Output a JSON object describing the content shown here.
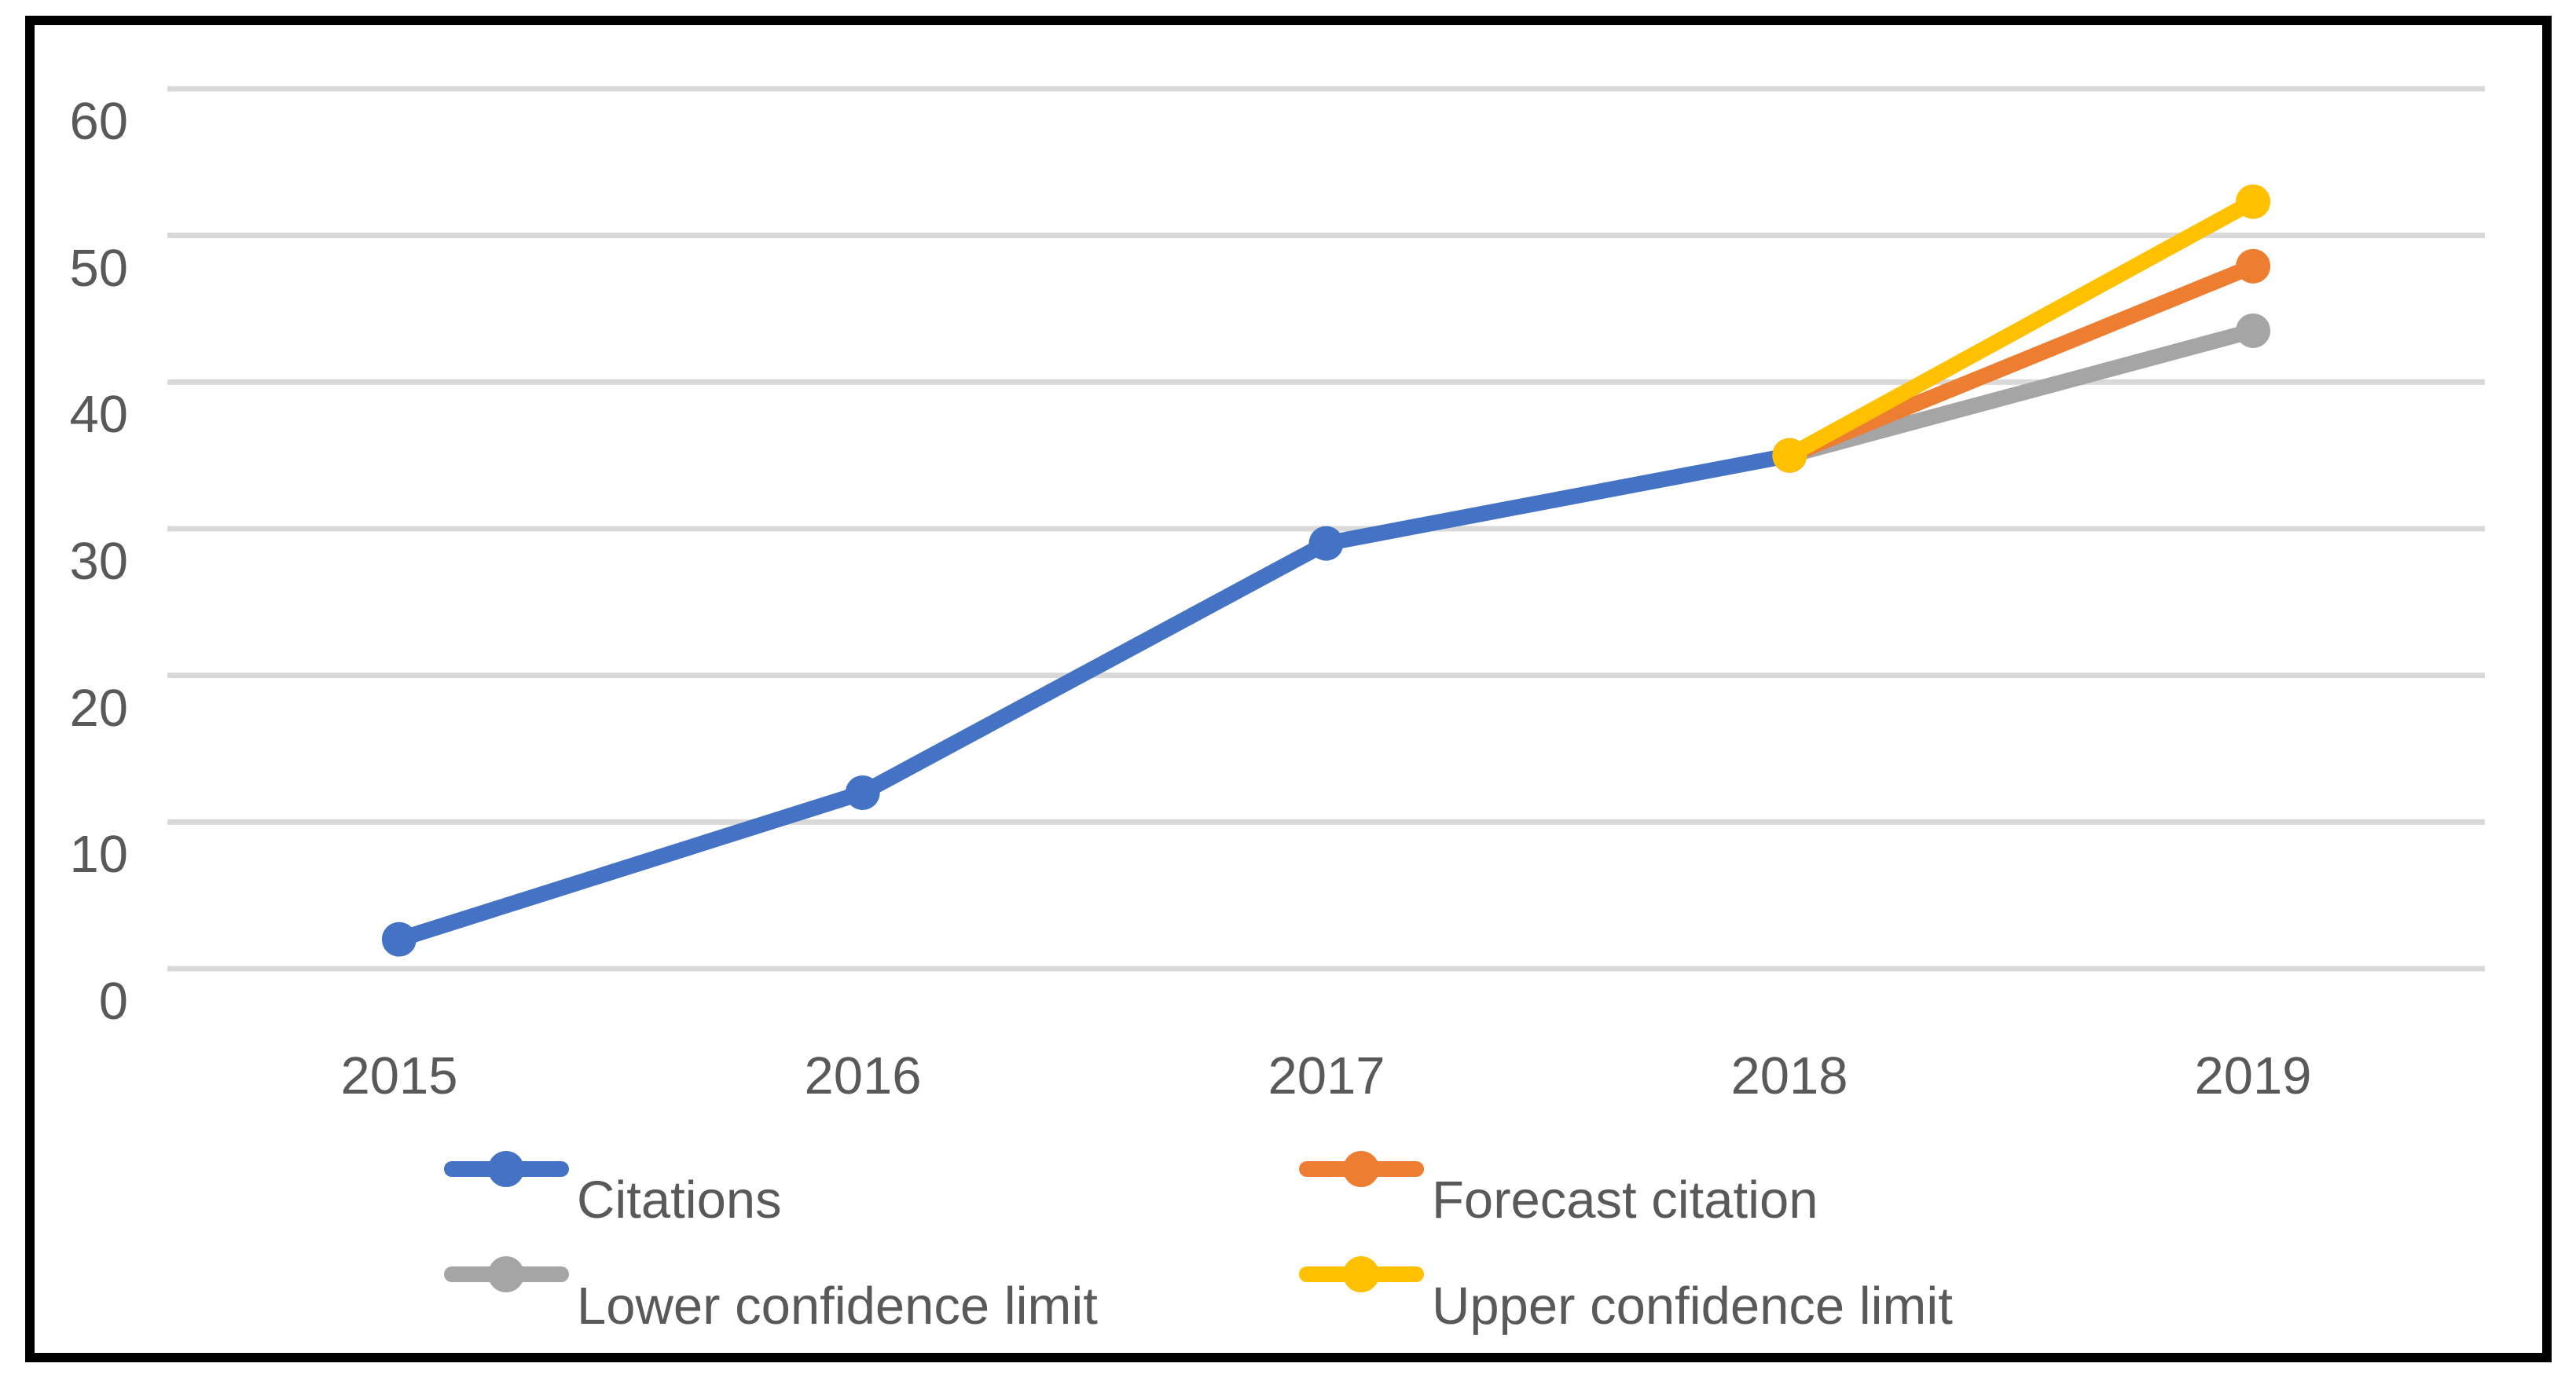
{
  "window": {
    "background_color": "#FFFFFF",
    "frame_border_color": "#000000"
  },
  "chart_data": {
    "type": "line",
    "title": "",
    "xlabel": "",
    "ylabel": "",
    "categories": [
      "2015",
      "2016",
      "2017",
      "2018",
      "2019"
    ],
    "series": [
      {
        "name": "Citations",
        "color": "#4472C4",
        "values": [
          2,
          12,
          29,
          35,
          null
        ]
      },
      {
        "name": "Lower confidence limit",
        "color": "#A5A5A5",
        "values": [
          null,
          null,
          null,
          35,
          43.5
        ]
      },
      {
        "name": "Forecast citation",
        "color": "#ED7D31",
        "values": [
          null,
          null,
          null,
          35,
          47.9
        ]
      },
      {
        "name": "Upper confidence limit",
        "color": "#FFC000",
        "values": [
          null,
          null,
          null,
          35,
          52.3
        ]
      }
    ],
    "y_axis": {
      "min": 0,
      "max": 60,
      "step": 10,
      "tick_labels_top_to_bottom": [
        "60",
        "50",
        "40",
        "30",
        "20",
        "10",
        "0"
      ]
    },
    "grid": true,
    "gridline_color": "#D9D9D9",
    "axis_text_color": "#595959",
    "legend_position": "bottom",
    "legend_rows": [
      [
        "Citations",
        "Forecast citation"
      ],
      [
        "Lower confidence limit",
        "Upper confidence limit"
      ]
    ]
  }
}
